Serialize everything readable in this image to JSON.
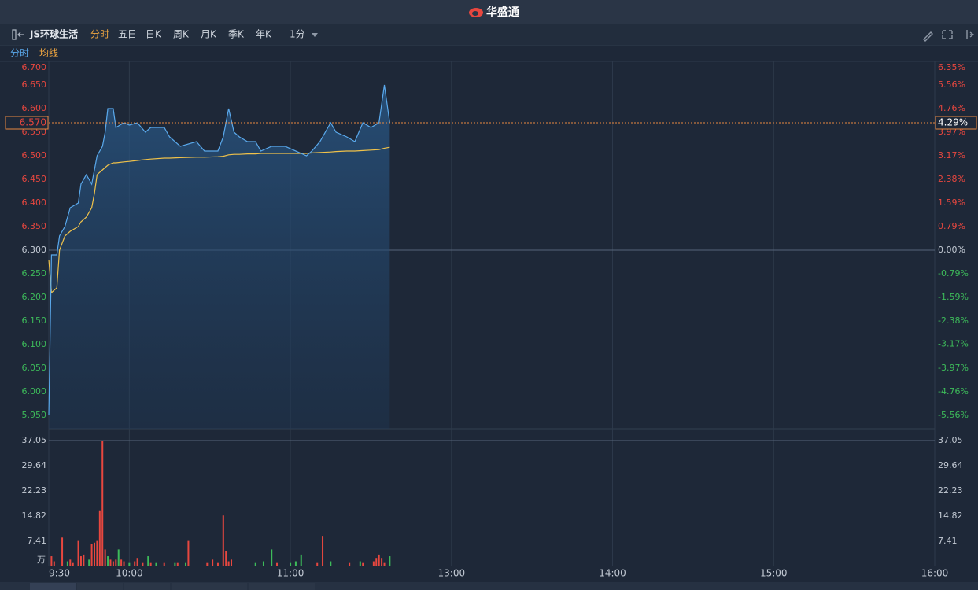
{
  "header": {
    "logo": "华盛通"
  },
  "toolbar": {
    "stock_name": "JS环球生活",
    "periods": [
      "分时",
      "五日",
      "日K",
      "周K",
      "月K",
      "季K",
      "年K"
    ],
    "active": 0,
    "interval": "1分"
  },
  "chart_data": [
    {
      "type": "line",
      "x": [
        "9:30",
        "9:31",
        "9:33",
        "9:34",
        "9:36",
        "9:38",
        "9:41",
        "9:42",
        "9:44",
        "9:46",
        "9:47",
        "9:48",
        "9:50",
        "9:51",
        "9:52",
        "9:54",
        "9:55",
        "9:58",
        "10:00",
        "10:03",
        "10:06",
        "10:08",
        "10:13",
        "10:15",
        "10:19",
        "10:25",
        "10:28",
        "10:33",
        "10:35",
        "10:37",
        "10:39",
        "10:41",
        "10:44",
        "10:47",
        "10:49",
        "10:53",
        "10:58",
        "11:06",
        "11:08",
        "11:11",
        "11:15",
        "11:17",
        "11:21",
        "11:24",
        "11:27",
        "11:30",
        "11:33",
        "11:35",
        "11:37"
      ],
      "series": [
        {
          "name": "分时",
          "color": "#5aa9ec",
          "values": [
            5.95,
            6.29,
            6.29,
            6.33,
            6.35,
            6.39,
            6.4,
            6.44,
            6.46,
            6.44,
            6.47,
            6.5,
            6.52,
            6.55,
            6.6,
            6.6,
            6.56,
            6.57,
            6.565,
            6.57,
            6.55,
            6.56,
            6.56,
            6.54,
            6.52,
            6.53,
            6.51,
            6.51,
            6.54,
            6.6,
            6.55,
            6.54,
            6.53,
            6.53,
            6.51,
            6.52,
            6.52,
            6.5,
            6.51,
            6.53,
            6.57,
            6.55,
            6.54,
            6.53,
            6.57,
            6.56,
            6.57,
            6.65,
            6.57
          ]
        },
        {
          "name": "均线",
          "color": "#f0c24a",
          "values": [
            6.28,
            6.21,
            6.22,
            6.3,
            6.33,
            6.34,
            6.35,
            6.36,
            6.37,
            6.39,
            6.42,
            6.46,
            6.47,
            6.475,
            6.48,
            6.485,
            6.485,
            6.487,
            6.488,
            6.49,
            6.492,
            6.493,
            6.495,
            6.495,
            6.496,
            6.497,
            6.497,
            6.498,
            6.499,
            6.502,
            6.503,
            6.503,
            6.504,
            6.504,
            6.505,
            6.505,
            6.505,
            6.505,
            6.506,
            6.507,
            6.508,
            6.509,
            6.51,
            6.51,
            6.511,
            6.512,
            6.513,
            6.516,
            6.518
          ]
        }
      ],
      "xlim": [
        "9:30",
        "16:00"
      ],
      "xticks": [
        "9:30",
        "10:00",
        "11:00",
        "13:00",
        "14:00",
        "15:00",
        "16:00"
      ],
      "ylim": [
        5.95,
        6.7
      ],
      "yticks": [
        {
          "value": 6.7,
          "label": "6.700"
        },
        {
          "value": 6.65,
          "label": "6.650"
        },
        {
          "value": 6.6,
          "label": "6.600"
        },
        {
          "value": 6.55,
          "label": "6.550"
        },
        {
          "value": 6.5,
          "label": "6.500"
        },
        {
          "value": 6.45,
          "label": "6.450"
        },
        {
          "value": 6.4,
          "label": "6.400"
        },
        {
          "value": 6.35,
          "label": "6.350"
        },
        {
          "value": 6.3,
          "label": "6.300"
        },
        {
          "value": 6.25,
          "label": "6.250"
        },
        {
          "value": 6.2,
          "label": "6.200"
        },
        {
          "value": 6.15,
          "label": "6.150"
        },
        {
          "value": 6.1,
          "label": "6.100"
        },
        {
          "value": 6.05,
          "label": "6.050"
        },
        {
          "value": 6.0,
          "label": "6.000"
        },
        {
          "value": 5.95,
          "label": "5.950"
        }
      ],
      "y2lim": [
        -5.56,
        6.35
      ],
      "y2ticks": [
        {
          "value": 6.35,
          "label": "6.35%"
        },
        {
          "value": 5.56,
          "label": "5.56%"
        },
        {
          "value": 4.76,
          "label": "4.76%"
        },
        {
          "value": 3.97,
          "label": "3.97%"
        },
        {
          "value": 3.17,
          "label": "3.17%"
        },
        {
          "value": 2.38,
          "label": "2.38%"
        },
        {
          "value": 1.59,
          "label": "1.59%"
        },
        {
          "value": 0.79,
          "label": "0.79%"
        },
        {
          "value": 0,
          "label": "0.00%"
        },
        {
          "value": -0.79,
          "label": "-0.79%"
        },
        {
          "value": -1.59,
          "label": "-1.59%"
        },
        {
          "value": -2.38,
          "label": "-2.38%"
        },
        {
          "value": -3.17,
          "label": "-3.17%"
        },
        {
          "value": -3.97,
          "label": "-3.97%"
        },
        {
          "value": -4.76,
          "label": "-4.76%"
        },
        {
          "value": -5.56,
          "label": "-5.56%"
        }
      ],
      "baseline": 6.3,
      "last_price": {
        "value": 6.57,
        "label": "6.570"
      },
      "last_change": {
        "value": 4.29,
        "label": "4.29%"
      }
    },
    {
      "type": "bar",
      "x": [
        "9:31",
        "9:32",
        "9:35",
        "9:37",
        "9:38",
        "9:39",
        "9:41",
        "9:42",
        "9:43",
        "9:45",
        "9:46",
        "9:47",
        "9:48",
        "9:49",
        "9:50",
        "9:51",
        "9:52",
        "9:53",
        "9:54",
        "9:55",
        "9:56",
        "9:57",
        "9:58",
        "10:00",
        "10:02",
        "10:03",
        "10:05",
        "10:07",
        "10:08",
        "10:10",
        "10:13",
        "10:17",
        "10:18",
        "10:21",
        "10:22",
        "10:29",
        "10:31",
        "10:33",
        "10:35",
        "10:36",
        "10:37",
        "10:38",
        "10:47",
        "10:50",
        "10:53",
        "10:55",
        "11:00",
        "11:02",
        "11:04",
        "11:10",
        "11:12",
        "11:15",
        "11:22",
        "11:26",
        "11:27",
        "11:31",
        "11:32",
        "11:33",
        "11:34",
        "11:35",
        "11:37"
      ],
      "values": [
        3,
        1.5,
        8.5,
        1.5,
        2,
        1,
        7.5,
        3,
        3.5,
        2,
        6.5,
        7,
        7.5,
        16.5,
        37,
        5,
        3,
        2,
        1.5,
        2,
        5,
        2,
        1.5,
        1,
        1.5,
        2.5,
        1,
        3,
        1,
        1,
        1,
        1,
        1,
        1,
        7.5,
        1,
        2,
        1,
        15,
        4.5,
        1.5,
        2,
        1,
        1.5,
        5,
        1,
        1,
        1.5,
        3.5,
        1,
        9,
        1.5,
        1,
        1.5,
        1,
        1.5,
        2.5,
        3.5,
        2.5,
        1,
        3
      ],
      "colors": [
        "#e8473f",
        "#e8473f",
        "#e8473f",
        "#3dbb5a",
        "#e8473f",
        "#e8473f",
        "#e8473f",
        "#e8473f",
        "#e8473f",
        "#3dbb5a",
        "#e8473f",
        "#e8473f",
        "#e8473f",
        "#e8473f",
        "#e8473f",
        "#e8473f",
        "#3dbb5a",
        "#e8473f",
        "#e8473f",
        "#e8473f",
        "#3dbb5a",
        "#e8473f",
        "#e8473f",
        "#3dbb5a",
        "#e8473f",
        "#e8473f",
        "#e8473f",
        "#3dbb5a",
        "#e8473f",
        "#3dbb5a",
        "#e8473f",
        "#3dbb5a",
        "#e8473f",
        "#3dbb5a",
        "#e8473f",
        "#e8473f",
        "#e8473f",
        "#e8473f",
        "#e8473f",
        "#e8473f",
        "#e8473f",
        "#e8473f",
        "#3dbb5a",
        "#3dbb5a",
        "#3dbb5a",
        "#e8473f",
        "#3dbb5a",
        "#3dbb5a",
        "#3dbb5a",
        "#e8473f",
        "#e8473f",
        "#3dbb5a",
        "#e8473f",
        "#3dbb5a",
        "#e8473f",
        "#e8473f",
        "#e8473f",
        "#e8473f",
        "#e8473f",
        "#e8473f",
        "#3dbb5a"
      ],
      "ylim": [
        0,
        37.05
      ],
      "yticks": [
        37.05,
        29.64,
        22.23,
        14.82,
        7.41
      ],
      "y_unit": "万"
    }
  ]
}
